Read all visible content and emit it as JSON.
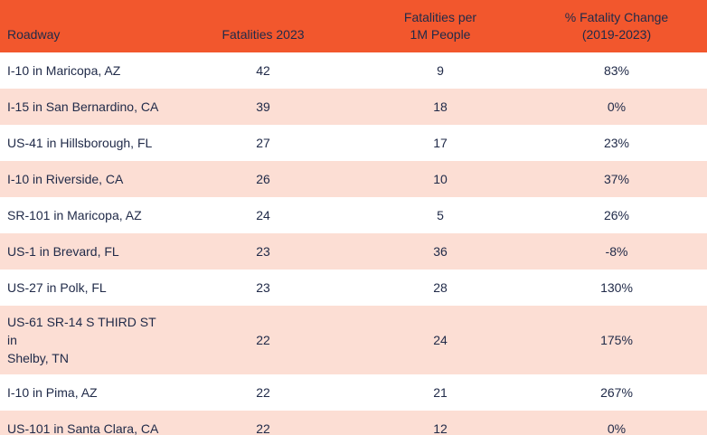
{
  "colors": {
    "header_bg": "#F2572D",
    "stripe_bg": "#FCDED4",
    "row_bg": "#FFFFFF",
    "text": "#212B49"
  },
  "chart_data": {
    "type": "table",
    "title": "",
    "columns": [
      "Roadway",
      "Fatalities 2023",
      "Fatalities per\n1M People",
      "% Fatality Change\n(2019-2023)"
    ],
    "rows": [
      [
        "I-10 in Maricopa, AZ",
        "42",
        "9",
        "83%"
      ],
      [
        "I-15 in San Bernardino, CA",
        "39",
        "18",
        "0%"
      ],
      [
        "US-41 in Hillsborough, FL",
        "27",
        "17",
        "23%"
      ],
      [
        "I-10 in Riverside, CA",
        "26",
        "10",
        "37%"
      ],
      [
        "SR-101 in Maricopa, AZ",
        "24",
        "5",
        "26%"
      ],
      [
        "US-1 in Brevard, FL",
        "23",
        "36",
        "-8%"
      ],
      [
        "US-27 in Polk, FL",
        "23",
        "28",
        "130%"
      ],
      [
        "US-61 SR-14 S THIRD ST in\nShelby, TN",
        "22",
        "24",
        "175%"
      ],
      [
        "I-10 in Pima, AZ",
        "22",
        "21",
        "267%"
      ],
      [
        "US-101 in Santa Clara, CA",
        "22",
        "12",
        "0%"
      ]
    ]
  }
}
